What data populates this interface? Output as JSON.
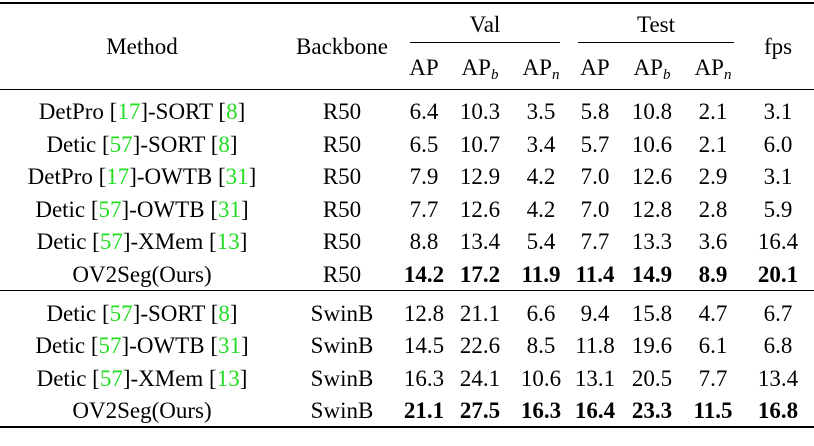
{
  "headers": {
    "method": "Method",
    "backbone": "Backbone",
    "val_group": "Val",
    "test_group": "Test",
    "fps": "fps",
    "ap": "AP",
    "ap_b_base": "AP",
    "ap_b_sub": "b",
    "ap_n_base": "AP",
    "ap_n_sub": "n"
  },
  "groups": [
    {
      "rows": [
        {
          "method_pre": "DetPro [",
          "cite1": "17",
          "method_mid": "]-SORT [",
          "cite2": "8",
          "method_post": "]",
          "backbone": "R50",
          "val_ap": "6.4",
          "val_apb": "10.3",
          "val_apn": "3.5",
          "test_ap": "5.8",
          "test_apb": "10.8",
          "test_apn": "2.1",
          "fps": "3.1"
        },
        {
          "method_pre": "Detic [",
          "cite1": "57",
          "method_mid": "]-SORT [",
          "cite2": "8",
          "method_post": "]",
          "backbone": "R50",
          "val_ap": "6.5",
          "val_apb": "10.7",
          "val_apn": "3.4",
          "test_ap": "5.7",
          "test_apb": "10.6",
          "test_apn": "2.1",
          "fps": "6.0"
        },
        {
          "method_pre": "DetPro [",
          "cite1": "17",
          "method_mid": "]-OWTB [",
          "cite2": "31",
          "method_post": "]",
          "backbone": "R50",
          "val_ap": "7.9",
          "val_apb": "12.9",
          "val_apn": "4.2",
          "test_ap": "7.0",
          "test_apb": "12.6",
          "test_apn": "2.9",
          "fps": "3.1"
        },
        {
          "method_pre": "Detic [",
          "cite1": "57",
          "method_mid": "]-OWTB [",
          "cite2": "31",
          "method_post": "]",
          "backbone": "R50",
          "val_ap": "7.7",
          "val_apb": "12.6",
          "val_apn": "4.2",
          "test_ap": "7.0",
          "test_apb": "12.8",
          "test_apn": "2.8",
          "fps": "5.9"
        },
        {
          "method_pre": "Detic [",
          "cite1": "57",
          "method_mid": "]-XMem [",
          "cite2": "13",
          "method_post": "]",
          "backbone": "R50",
          "val_ap": "8.8",
          "val_apb": "13.4",
          "val_apn": "5.4",
          "test_ap": "7.7",
          "test_apb": "13.3",
          "test_apn": "3.6",
          "fps": "16.4"
        }
      ],
      "ours": {
        "method": "OV2Seg(Ours)",
        "backbone": "R50",
        "val_ap": "14.2",
        "val_apb": "17.2",
        "val_apn": "11.9",
        "test_ap": "11.4",
        "test_apb": "14.9",
        "test_apn": "8.9",
        "fps": "20.1"
      }
    },
    {
      "rows": [
        {
          "method_pre": "Detic [",
          "cite1": "57",
          "method_mid": "]-SORT [",
          "cite2": "8",
          "method_post": "]",
          "backbone": "SwinB",
          "val_ap": "12.8",
          "val_apb": "21.1",
          "val_apn": "6.6",
          "test_ap": "9.4",
          "test_apb": "15.8",
          "test_apn": "4.7",
          "fps": "6.7"
        },
        {
          "method_pre": "Detic [",
          "cite1": "57",
          "method_mid": "]-OWTB [",
          "cite2": "31",
          "method_post": "]",
          "backbone": "SwinB",
          "val_ap": "14.5",
          "val_apb": "22.6",
          "val_apn": "8.5",
          "test_ap": "11.8",
          "test_apb": "19.6",
          "test_apn": "6.1",
          "fps": "6.8"
        },
        {
          "method_pre": "Detic [",
          "cite1": "57",
          "method_mid": "]-XMem [",
          "cite2": "13",
          "method_post": "]",
          "backbone": "SwinB",
          "val_ap": "16.3",
          "val_apb": "24.1",
          "val_apn": "10.6",
          "test_ap": "13.1",
          "test_apb": "20.5",
          "test_apn": "7.7",
          "fps": "13.4"
        }
      ],
      "ours": {
        "method": "OV2Seg(Ours)",
        "backbone": "SwinB",
        "val_ap": "21.1",
        "val_apb": "27.5",
        "val_apn": "16.3",
        "test_ap": "16.4",
        "test_apb": "23.3",
        "test_apn": "11.5",
        "fps": "16.8"
      }
    }
  ],
  "colors": {
    "citation": "#22dd22",
    "text": "#000000"
  }
}
